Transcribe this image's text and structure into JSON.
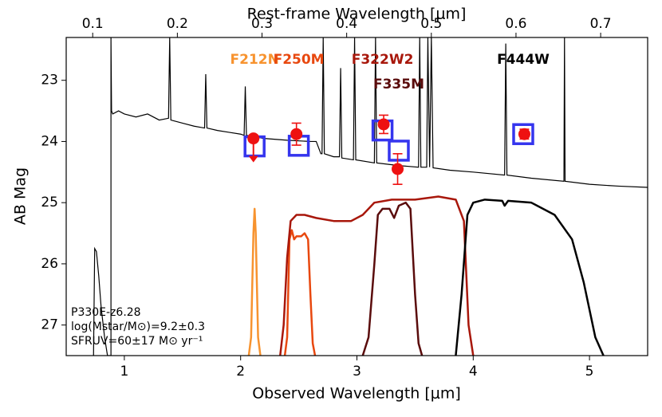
{
  "chart_data": {
    "type": "sed",
    "xlabel": "Observed Wavelength [μm]",
    "x2label": "Rest-frame Wavelength [μm]",
    "ylabel": "AB Mag",
    "xlim": [
      0.5,
      5.5
    ],
    "xticks": [
      1,
      2,
      3,
      4,
      5
    ],
    "x2lim": [
      0.0687,
      0.7555
    ],
    "x2ticks": [
      0.1,
      0.2,
      0.3,
      0.4,
      0.5,
      0.6,
      0.7
    ],
    "ylim": [
      22.3,
      27.5
    ],
    "y_inverted": true,
    "yticks": [
      23,
      24,
      25,
      26,
      27
    ],
    "annotations": [
      "P330E-z6.28",
      "log(Mstar/M⊙)=9.2±0.3",
      "SFRUV=60±17 M⊙ yr⁻¹"
    ],
    "spectrum": {
      "color": "#000000",
      "x": [
        0.735,
        0.745,
        0.76,
        0.78,
        0.8,
        0.83,
        0.855,
        0.885,
        0.885,
        0.89,
        0.9,
        0.95,
        1.0,
        1.1,
        1.2,
        1.3,
        1.38,
        1.39,
        1.4,
        1.5,
        1.6,
        1.69,
        1.7,
        1.71,
        1.8,
        1.9,
        2.0,
        2.03,
        2.04,
        2.05,
        2.2,
        2.4,
        2.6,
        2.65,
        2.69,
        2.7,
        2.71,
        2.72,
        2.8,
        2.85,
        2.86,
        2.87,
        2.97,
        2.98,
        2.99,
        3.15,
        3.16,
        3.17,
        3.3,
        3.4,
        3.53,
        3.54,
        3.55,
        3.6,
        3.61,
        3.625,
        3.64,
        3.655,
        3.8,
        4.0,
        4.27,
        4.28,
        4.29,
        4.5,
        4.78,
        4.785,
        4.79,
        5.0,
        5.25,
        5.5
      ],
      "y": [
        27.5,
        25.75,
        25.8,
        26.2,
        26.7,
        27.2,
        27.5,
        27.5,
        22.3,
        23.5,
        23.55,
        23.5,
        23.55,
        23.6,
        23.55,
        23.65,
        23.62,
        22.3,
        23.65,
        23.7,
        23.75,
        23.78,
        22.9,
        23.78,
        23.82,
        23.85,
        23.88,
        23.9,
        23.1,
        23.9,
        23.95,
        23.98,
        24.0,
        24.0,
        24.2,
        24.2,
        22.3,
        24.2,
        24.25,
        24.25,
        22.8,
        24.27,
        24.3,
        22.3,
        24.3,
        24.35,
        22.3,
        24.35,
        24.38,
        24.4,
        24.42,
        22.3,
        24.42,
        24.42,
        22.3,
        24.42,
        22.3,
        24.43,
        24.47,
        24.5,
        24.55,
        22.4,
        24.55,
        24.6,
        24.65,
        22.3,
        24.65,
        24.7,
        24.73,
        24.75
      ]
    },
    "filters": [
      {
        "label": "F212N",
        "color": "#f7932f",
        "x": [
          2.07,
          2.09,
          2.11,
          2.12,
          2.13,
          2.15,
          2.17
        ],
        "y": [
          27.5,
          27.2,
          25.5,
          25.1,
          25.5,
          27.2,
          27.5
        ]
      },
      {
        "label": "F250M",
        "color": "#e8480f",
        "x": [
          2.38,
          2.4,
          2.42,
          2.44,
          2.46,
          2.48,
          2.52,
          2.55,
          2.58,
          2.6,
          2.62,
          2.64
        ],
        "y": [
          27.5,
          27.2,
          25.6,
          25.45,
          25.6,
          25.55,
          25.55,
          25.5,
          25.6,
          26.5,
          27.3,
          27.5
        ]
      },
      {
        "label": "F322W2",
        "color": "#a8170b",
        "x": [
          2.34,
          2.37,
          2.4,
          2.43,
          2.48,
          2.55,
          2.65,
          2.8,
          2.95,
          3.05,
          3.15,
          3.3,
          3.5,
          3.7,
          3.85,
          3.92,
          3.96,
          4.0
        ],
        "y": [
          27.5,
          27.0,
          25.9,
          25.3,
          25.2,
          25.2,
          25.25,
          25.3,
          25.3,
          25.2,
          25.0,
          24.95,
          24.95,
          24.9,
          24.95,
          25.3,
          27.0,
          27.5
        ]
      },
      {
        "label": "F335M",
        "color": "#5a0c0c",
        "x": [
          3.05,
          3.1,
          3.15,
          3.18,
          3.22,
          3.28,
          3.32,
          3.36,
          3.42,
          3.46,
          3.5,
          3.53,
          3.56
        ],
        "y": [
          27.5,
          27.2,
          26.0,
          25.2,
          25.1,
          25.1,
          25.25,
          25.05,
          25.0,
          25.1,
          26.5,
          27.3,
          27.5
        ]
      },
      {
        "label": "F444W",
        "color": "#000000",
        "x": [
          3.85,
          3.9,
          3.95,
          4.0,
          4.1,
          4.25,
          4.27,
          4.3,
          4.5,
          4.7,
          4.85,
          4.95,
          5.05,
          5.12
        ],
        "y": [
          27.5,
          26.5,
          25.2,
          25.0,
          24.95,
          24.97,
          25.05,
          24.97,
          25.0,
          25.2,
          25.6,
          26.3,
          27.2,
          27.5
        ]
      }
    ],
    "model": {
      "color": "#3535ee",
      "x": [
        2.12,
        2.5,
        3.22,
        3.36,
        4.43
      ],
      "values": [
        24.08,
        24.07,
        23.82,
        24.15,
        23.88
      ]
    },
    "observed": {
      "color": "#ee1111",
      "x": [
        2.11,
        2.48,
        3.23,
        3.35,
        4.44
      ],
      "values": [
        23.95,
        23.88,
        23.72,
        24.45,
        23.88
      ],
      "errors": [
        null,
        0.18,
        0.15,
        0.25,
        0.08
      ],
      "upper_limit": [
        true,
        false,
        false,
        false,
        false
      ]
    }
  }
}
